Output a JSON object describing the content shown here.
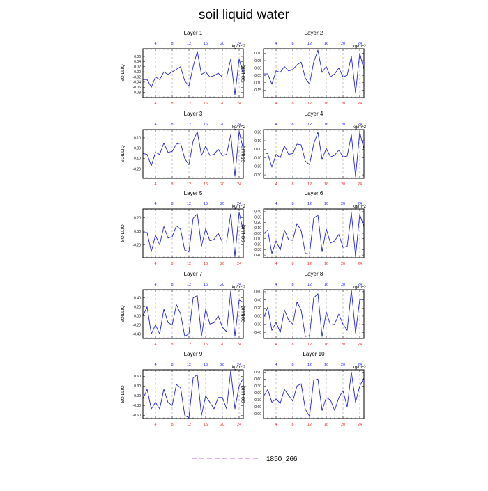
{
  "title": "soil liquid water",
  "legend": {
    "label": "1850_266",
    "line_color": "#cc88dd",
    "placement": "bottom-center"
  },
  "units": "kg/m^2",
  "ylabel": "SOILLIQ",
  "colors": {
    "line": "#2222cc",
    "top_ticks": "#2222ff",
    "bottom_ticks": "#ff2222",
    "vgrid": "#999999"
  },
  "xlim": [
    1,
    25
  ],
  "x_ticks": [
    4,
    8,
    12,
    16,
    20,
    24
  ],
  "chart_data": [
    {
      "type": "line",
      "title": "Layer 1",
      "ylim": [
        -0.1,
        0.09
      ],
      "y_ticks": [
        -0.08,
        -0.06,
        -0.04,
        -0.02,
        0,
        0.02,
        0.04,
        0.06
      ],
      "x": [
        1,
        2,
        3,
        4,
        5,
        6,
        7,
        8,
        9,
        10,
        11,
        12,
        13,
        14,
        15,
        16,
        17,
        18,
        19,
        20,
        21,
        22,
        23,
        24,
        25
      ],
      "values": [
        -0.03,
        -0.03,
        -0.06,
        -0.02,
        -0.03,
        0.0,
        -0.01,
        0.0,
        0.01,
        0.02,
        -0.035,
        -0.055,
        0.02,
        0.08,
        -0.01,
        0.0,
        -0.02,
        -0.015,
        -0.005,
        -0.02,
        -0.02,
        0.05,
        -0.09,
        0.05,
        -0.01
      ]
    },
    {
      "type": "line",
      "title": "Layer 2",
      "ylim": [
        -0.2,
        0.13
      ],
      "y_ticks": [
        -0.15,
        -0.1,
        -0.05,
        0,
        0.05,
        0.1
      ],
      "x": [
        1,
        2,
        3,
        4,
        5,
        6,
        7,
        8,
        9,
        10,
        11,
        12,
        13,
        14,
        15,
        16,
        17,
        18,
        19,
        20,
        21,
        22,
        23,
        24,
        25
      ],
      "values": [
        -0.04,
        -0.04,
        -0.11,
        -0.02,
        -0.03,
        0.01,
        -0.02,
        -0.01,
        0.02,
        0.04,
        -0.07,
        -0.11,
        0.04,
        0.12,
        -0.03,
        0.01,
        -0.06,
        -0.04,
        0.0,
        -0.06,
        -0.05,
        0.08,
        -0.17,
        0.1,
        -0.01
      ]
    },
    {
      "type": "line",
      "title": "Layer 3",
      "ylim": [
        -0.29,
        0.18
      ],
      "y_ticks": [
        -0.2,
        -0.1,
        0,
        0.1
      ],
      "x": [
        1,
        2,
        3,
        4,
        5,
        6,
        7,
        8,
        9,
        10,
        11,
        12,
        13,
        14,
        15,
        16,
        17,
        18,
        19,
        20,
        21,
        22,
        23,
        24,
        25
      ],
      "values": [
        -0.05,
        -0.06,
        -0.17,
        -0.04,
        -0.06,
        0.05,
        -0.04,
        -0.03,
        0.04,
        0.05,
        -0.1,
        -0.16,
        0.07,
        0.16,
        -0.07,
        0.02,
        -0.07,
        -0.06,
        -0.01,
        -0.07,
        -0.06,
        0.13,
        -0.27,
        0.16,
        -0.01
      ]
    },
    {
      "type": "line",
      "title": "Layer 4",
      "ylim": [
        -0.34,
        0.23
      ],
      "y_ticks": [
        -0.3,
        -0.2,
        -0.1,
        0,
        0.1,
        0.2
      ],
      "x": [
        1,
        2,
        3,
        4,
        5,
        6,
        7,
        8,
        9,
        10,
        11,
        12,
        13,
        14,
        15,
        16,
        17,
        18,
        19,
        20,
        21,
        22,
        23,
        24,
        25
      ],
      "values": [
        -0.04,
        -0.05,
        -0.21,
        -0.06,
        -0.1,
        0.04,
        -0.06,
        -0.05,
        0.06,
        0.05,
        -0.14,
        -0.18,
        0.06,
        0.2,
        -0.12,
        0.01,
        -0.09,
        -0.07,
        -0.01,
        -0.09,
        -0.08,
        0.17,
        -0.32,
        0.2,
        0.0
      ]
    },
    {
      "type": "line",
      "title": "Layer 5",
      "ylim": [
        -0.39,
        0.33
      ],
      "y_ticks": [
        -0.2,
        0,
        0.2
      ],
      "x": [
        1,
        2,
        3,
        4,
        5,
        6,
        7,
        8,
        9,
        10,
        11,
        12,
        13,
        14,
        15,
        16,
        17,
        18,
        19,
        20,
        21,
        22,
        23,
        24,
        25
      ],
      "values": [
        -0.02,
        -0.02,
        -0.3,
        -0.06,
        -0.2,
        0.07,
        -0.1,
        -0.08,
        0.08,
        0.03,
        -0.28,
        -0.3,
        0.19,
        0.26,
        -0.22,
        0.04,
        -0.14,
        -0.12,
        -0.03,
        -0.16,
        -0.16,
        0.26,
        -0.37,
        0.28,
        0.0
      ]
    },
    {
      "type": "line",
      "title": "Layer 6",
      "ylim": [
        -0.45,
        0.45
      ],
      "y_ticks": [
        -0.4,
        -0.3,
        -0.2,
        -0.1,
        0,
        0.1,
        0.2,
        0.3,
        0.4
      ],
      "x": [
        1,
        2,
        3,
        4,
        5,
        6,
        7,
        8,
        9,
        10,
        11,
        12,
        13,
        14,
        15,
        16,
        17,
        18,
        19,
        20,
        21,
        22,
        23,
        24,
        25
      ],
      "values": [
        -0.01,
        0.06,
        -0.37,
        -0.14,
        -0.31,
        0.06,
        -0.12,
        -0.13,
        0.18,
        0.05,
        -0.37,
        -0.38,
        0.28,
        0.34,
        -0.34,
        0.08,
        -0.18,
        -0.14,
        -0.02,
        -0.26,
        -0.24,
        0.38,
        -0.43,
        0.35,
        0.12
      ]
    },
    {
      "type": "line",
      "title": "Layer 7",
      "ylim": [
        -0.5,
        0.58
      ],
      "y_ticks": [
        -0.4,
        -0.2,
        0,
        0.2,
        0.4
      ],
      "x": [
        1,
        2,
        3,
        4,
        5,
        6,
        7,
        8,
        9,
        10,
        11,
        12,
        13,
        14,
        15,
        16,
        17,
        18,
        19,
        20,
        21,
        22,
        23,
        24,
        25
      ],
      "values": [
        0.0,
        0.2,
        -0.4,
        -0.2,
        -0.4,
        0.15,
        -0.15,
        -0.2,
        0.25,
        0.05,
        -0.45,
        -0.4,
        0.4,
        0.45,
        -0.45,
        0.15,
        -0.18,
        -0.15,
        0.0,
        -0.25,
        -0.35,
        0.55,
        -0.45,
        0.35,
        0.3
      ]
    },
    {
      "type": "line",
      "title": "Layer 8",
      "ylim": [
        -0.55,
        0.65
      ],
      "y_ticks": [
        -0.4,
        -0.2,
        0,
        0.2,
        0.4,
        0.6
      ],
      "x": [
        1,
        2,
        3,
        4,
        5,
        6,
        7,
        8,
        9,
        10,
        11,
        12,
        13,
        14,
        15,
        16,
        17,
        18,
        19,
        20,
        21,
        22,
        23,
        24,
        25
      ],
      "values": [
        -0.05,
        0.22,
        -0.35,
        -0.15,
        -0.4,
        0.15,
        -0.1,
        -0.2,
        0.35,
        0.15,
        -0.5,
        -0.48,
        0.45,
        0.55,
        -0.5,
        0.1,
        -0.22,
        -0.2,
        0.05,
        -0.2,
        -0.35,
        0.65,
        -0.42,
        0.4,
        0.42
      ]
    },
    {
      "type": "line",
      "title": "Layer 9",
      "ylim": [
        -0.7,
        0.8
      ],
      "y_ticks": [
        -0.6,
        -0.3,
        0,
        0.3,
        0.6
      ],
      "x": [
        1,
        2,
        3,
        4,
        5,
        6,
        7,
        8,
        9,
        10,
        11,
        12,
        13,
        14,
        15,
        16,
        17,
        18,
        19,
        20,
        21,
        22,
        23,
        24,
        25
      ],
      "values": [
        -0.1,
        0.2,
        -0.4,
        -0.2,
        -0.4,
        0.2,
        -0.2,
        -0.3,
        0.35,
        0.25,
        -0.6,
        -0.68,
        0.55,
        0.65,
        -0.6,
        0.0,
        -0.2,
        -0.4,
        -0.05,
        -0.05,
        -0.4,
        0.78,
        -0.4,
        0.3,
        0.55
      ]
    },
    {
      "type": "line",
      "title": "Layer 10",
      "ylim": [
        -1.1,
        1.0
      ],
      "y_ticks": [
        -0.9,
        -0.6,
        -0.3,
        0,
        0.3,
        0.6,
        0.9
      ],
      "x": [
        1,
        2,
        3,
        4,
        5,
        6,
        7,
        8,
        9,
        10,
        11,
        12,
        13,
        14,
        15,
        16,
        17,
        18,
        19,
        20,
        21,
        22,
        23,
        24,
        25
      ],
      "values": [
        -0.15,
        0.15,
        -0.4,
        -0.25,
        -0.45,
        0.15,
        -0.1,
        -0.35,
        0.3,
        0.4,
        -0.7,
        -1.0,
        0.55,
        0.6,
        -0.75,
        -0.2,
        -0.3,
        -0.75,
        -0.2,
        0.1,
        -0.6,
        0.9,
        -0.4,
        0.3,
        0.65
      ]
    }
  ]
}
